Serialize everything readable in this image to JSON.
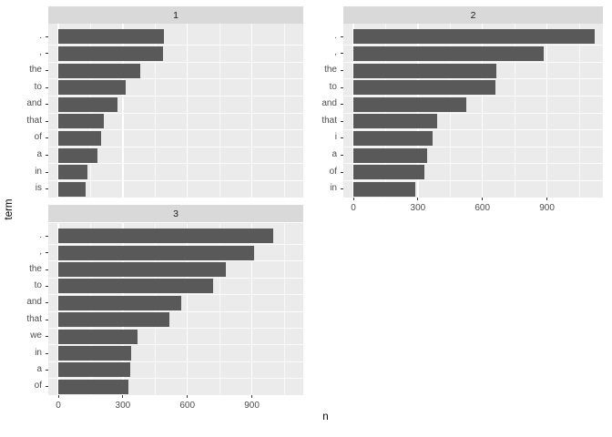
{
  "colors": {
    "background": "#FFFFFF",
    "panel_bg": "#EBEBEB",
    "strip_bg": "#D9D9D9",
    "strip_text": "#1A1A1A",
    "bar": "#595959",
    "grid_major": "#FFFFFF",
    "grid_minor": "#FFFFFF",
    "axis_text": "#4D4D4D",
    "tick_mark": "#333333",
    "title_text": "#000000"
  },
  "chart_data": {
    "type": "bar",
    "orientation": "horizontal",
    "title": "",
    "xlabel": "n",
    "ylabel": "term",
    "x_ticks": [
      0,
      300,
      600,
      900
    ],
    "x_minor_ticks": [
      150,
      450,
      750,
      1050
    ],
    "xlim": [
      -48,
      1160
    ],
    "grid": "white major and minor vertical lines on gray panel",
    "legend": "none",
    "facets": [
      {
        "label": "1",
        "categories": [
          ".",
          ",",
          "the",
          "to",
          "and",
          "that",
          "of",
          "a",
          "in",
          "is"
        ],
        "values": [
          490,
          485,
          380,
          315,
          275,
          210,
          200,
          180,
          135,
          125
        ]
      },
      {
        "label": "2",
        "categories": [
          ".",
          ",",
          "the",
          "to",
          "and",
          "that",
          "i",
          "a",
          "of",
          "in"
        ],
        "values": [
          1120,
          885,
          665,
          660,
          525,
          390,
          370,
          345,
          330,
          290
        ]
      },
      {
        "label": "3",
        "categories": [
          ".",
          ",",
          "the",
          "to",
          "and",
          "that",
          "we",
          "in",
          "a",
          "of"
        ],
        "values": [
          1000,
          910,
          780,
          720,
          570,
          515,
          370,
          340,
          335,
          325
        ]
      }
    ]
  }
}
